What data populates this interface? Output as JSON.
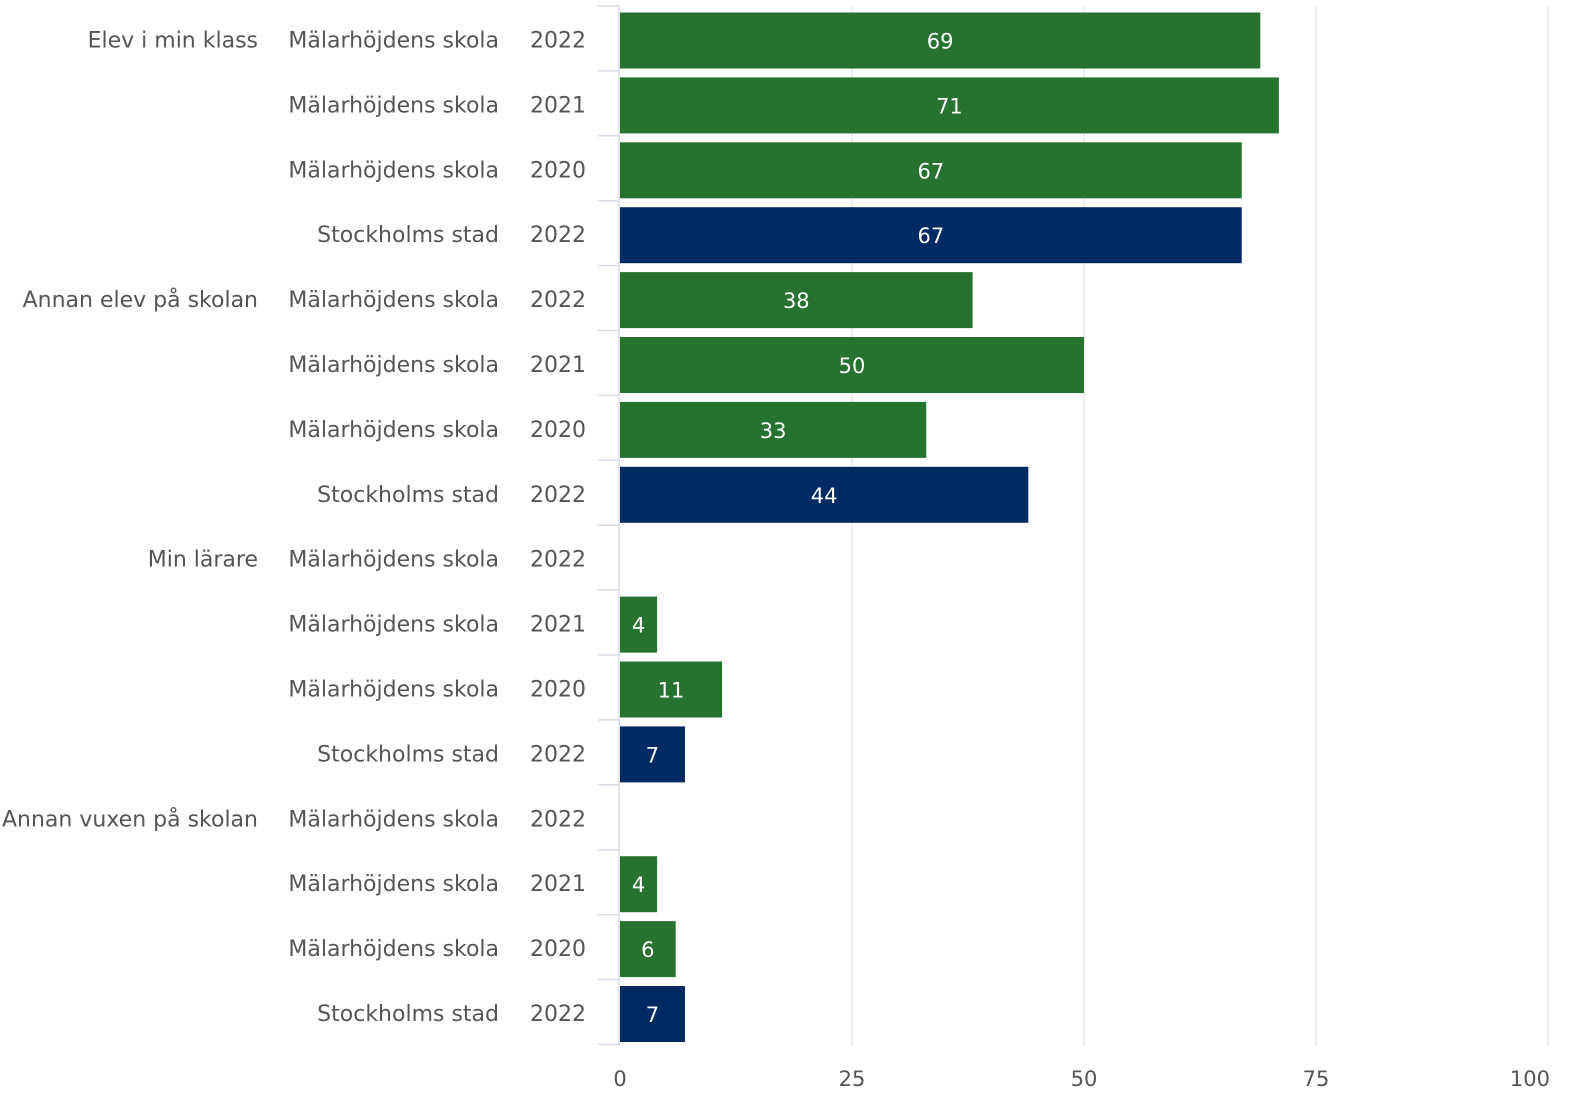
{
  "chart_data": {
    "type": "bar",
    "orientation": "horizontal",
    "title": "",
    "xlabel": "",
    "ylabel": "",
    "xlim": [
      0,
      100
    ],
    "x_ticks": [
      "0",
      "25",
      "50",
      "75",
      "100"
    ],
    "grid": true,
    "colors": {
      "school": "#267330",
      "city": "#002a63"
    },
    "rows": [
      {
        "group": "Elev i min klass",
        "unit": "Mälarhöjdens skola",
        "year": "2022",
        "value": 69,
        "label": "69",
        "kind": "school"
      },
      {
        "group": "",
        "unit": "Mälarhöjdens skola",
        "year": "2021",
        "value": 71,
        "label": "71",
        "kind": "school"
      },
      {
        "group": "",
        "unit": "Mälarhöjdens skola",
        "year": "2020",
        "value": 67,
        "label": "67",
        "kind": "school"
      },
      {
        "group": "",
        "unit": "Stockholms stad",
        "year": "2022",
        "value": 67,
        "label": "67",
        "kind": "city"
      },
      {
        "group": "Annan elev på skolan",
        "unit": "Mälarhöjdens skola",
        "year": "2022",
        "value": 38,
        "label": "38",
        "kind": "school"
      },
      {
        "group": "",
        "unit": "Mälarhöjdens skola",
        "year": "2021",
        "value": 50,
        "label": "50",
        "kind": "school"
      },
      {
        "group": "",
        "unit": "Mälarhöjdens skola",
        "year": "2020",
        "value": 33,
        "label": "33",
        "kind": "school"
      },
      {
        "group": "",
        "unit": "Stockholms stad",
        "year": "2022",
        "value": 44,
        "label": "44",
        "kind": "city"
      },
      {
        "group": "Min lärare",
        "unit": "Mälarhöjdens skola",
        "year": "2022",
        "value": null,
        "label": "",
        "kind": "school"
      },
      {
        "group": "",
        "unit": "Mälarhöjdens skola",
        "year": "2021",
        "value": 4,
        "label": "4",
        "kind": "school"
      },
      {
        "group": "",
        "unit": "Mälarhöjdens skola",
        "year": "2020",
        "value": 11,
        "label": "11",
        "kind": "school"
      },
      {
        "group": "",
        "unit": "Stockholms stad",
        "year": "2022",
        "value": 7,
        "label": "7",
        "kind": "city"
      },
      {
        "group": "Annan vuxen på skolan",
        "unit": "Mälarhöjdens skola",
        "year": "2022",
        "value": null,
        "label": "",
        "kind": "school"
      },
      {
        "group": "",
        "unit": "Mälarhöjdens skola",
        "year": "2021",
        "value": 4,
        "label": "4",
        "kind": "school"
      },
      {
        "group": "",
        "unit": "Mälarhöjdens skola",
        "year": "2020",
        "value": 6,
        "label": "6",
        "kind": "school"
      },
      {
        "group": "",
        "unit": "Stockholms stad",
        "year": "2022",
        "value": 7,
        "label": "7",
        "kind": "city"
      }
    ]
  }
}
